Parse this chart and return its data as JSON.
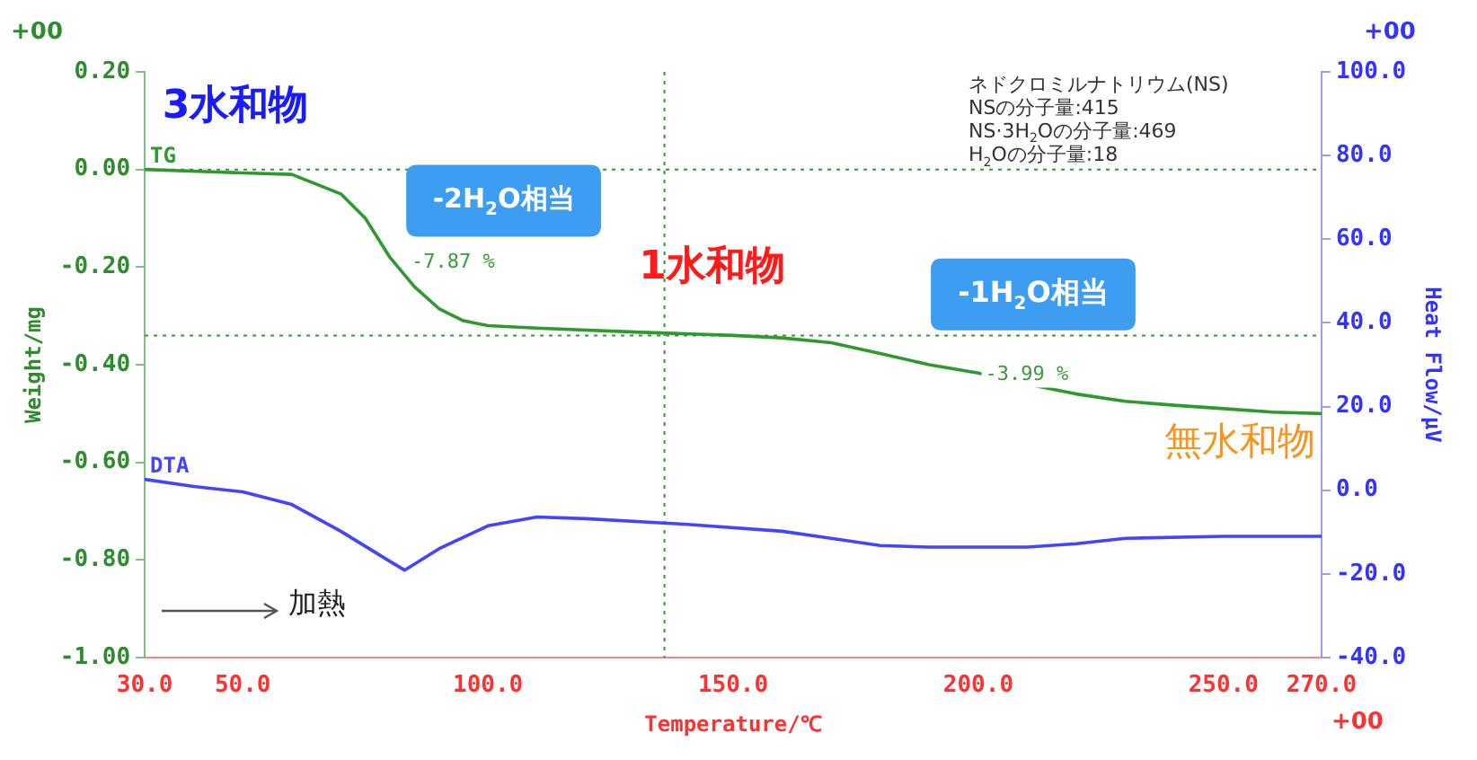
{
  "chart_data": {
    "type": "line",
    "xlabel": "Temperature/℃",
    "ylabel": "Weight/mg",
    "y2label": "Heat Flow/μV",
    "xlim": [
      30,
      270
    ],
    "xticks": [
      {
        "value": 30,
        "label": "30.0"
      },
      {
        "value": 50,
        "label": "50.0"
      },
      {
        "value": 100,
        "label": "100.0"
      },
      {
        "value": 150,
        "label": "150.0"
      },
      {
        "value": 200,
        "label": "200.0"
      },
      {
        "value": 250,
        "label": "250.0"
      },
      {
        "value": 270,
        "label": "270.0"
      }
    ],
    "ylim": [
      -1.0,
      0.2
    ],
    "yticks": [
      {
        "value": 0.2,
        "label": "0.20"
      },
      {
        "value": 0,
        "label": "0.00"
      },
      {
        "value": -0.2,
        "label": "-0.20"
      },
      {
        "value": -0.4,
        "label": "-0.40"
      },
      {
        "value": -0.6,
        "label": "-0.60"
      },
      {
        "value": -0.8,
        "label": "-0.80"
      },
      {
        "value": -1.0,
        "label": "-1.00"
      }
    ],
    "y2lim": [
      -40,
      100
    ],
    "y2ticks": [
      {
        "value": 100,
        "label": "100.0"
      },
      {
        "value": 80,
        "label": "80.0"
      },
      {
        "value": 60,
        "label": "60.0"
      },
      {
        "value": 40,
        "label": "40.0"
      },
      {
        "value": 20,
        "label": "20.0"
      },
      {
        "value": 0,
        "label": "0.0"
      },
      {
        "value": -20,
        "label": "-20.0"
      },
      {
        "value": -40,
        "label": "-40.0"
      }
    ],
    "grid": false,
    "legend": false,
    "marker": "none",
    "line_style": "solid",
    "series": [
      {
        "name": "TG",
        "color": "#2e9a2e",
        "x": [
          30,
          50,
          60,
          70,
          75,
          80,
          85,
          90,
          95,
          100,
          110,
          130,
          150,
          160,
          170,
          180,
          190,
          200,
          210,
          220,
          230,
          240,
          250,
          260,
          270
        ],
        "values": [
          0,
          -0.007,
          -0.01,
          -0.05,
          -0.1,
          -0.18,
          -0.24,
          -0.285,
          -0.31,
          -0.32,
          -0.325,
          -0.333,
          -0.34,
          -0.345,
          -0.355,
          -0.377,
          -0.4,
          -0.417,
          -0.44,
          -0.46,
          -0.475,
          -0.483,
          -0.49,
          -0.497,
          -0.5
        ]
      },
      {
        "name": "DTA",
        "color": "#4444ff",
        "axis": "y2",
        "x": [
          30,
          40,
          50,
          60,
          70,
          80,
          83,
          90,
          100,
          110,
          120,
          140,
          160,
          170,
          180,
          190,
          200,
          210,
          220,
          230,
          250,
          270
        ],
        "values": [
          2.6,
          0.9,
          -0.4,
          -3.4,
          -9.8,
          -17,
          -19.1,
          -14,
          -8.5,
          -6.4,
          -6.8,
          -8.1,
          -9.8,
          -11.5,
          -13.2,
          -13.6,
          -13.6,
          -13.6,
          -12.8,
          -11.5,
          -11,
          -11
        ]
      }
    ],
    "ref_lines": [
      {
        "axis": "y",
        "value": 0,
        "label": null,
        "color": "#2e9a2e",
        "line_style": "dotted"
      },
      {
        "axis": "y",
        "value": -0.34,
        "label": null,
        "color": "#2e9a2e",
        "line_style": "dotted"
      },
      {
        "axis": "x",
        "value": 136,
        "label": null,
        "color": "#2e9a2e",
        "line_style": "dotted"
      }
    ],
    "annotations": [
      "3水和物",
      "-2H$_{2}$O相当",
      "1水和物",
      "-1H$_{2}$O相当",
      "無水和物",
      "ネドクロミルナトリウム(NS)",
      "NSの分子量:415",
      "NS·3H$_{2}$Oの分子量:469",
      "H$_{2}$Oの分子量:18",
      "加熱",
      "+00",
      "+00",
      "+00",
      {
        "text": "-7.87 %",
        "x": 80,
        "y": -0.18
      },
      {
        "text": "-3.99 %",
        "x": 197,
        "y": -0.41
      }
    ]
  }
}
